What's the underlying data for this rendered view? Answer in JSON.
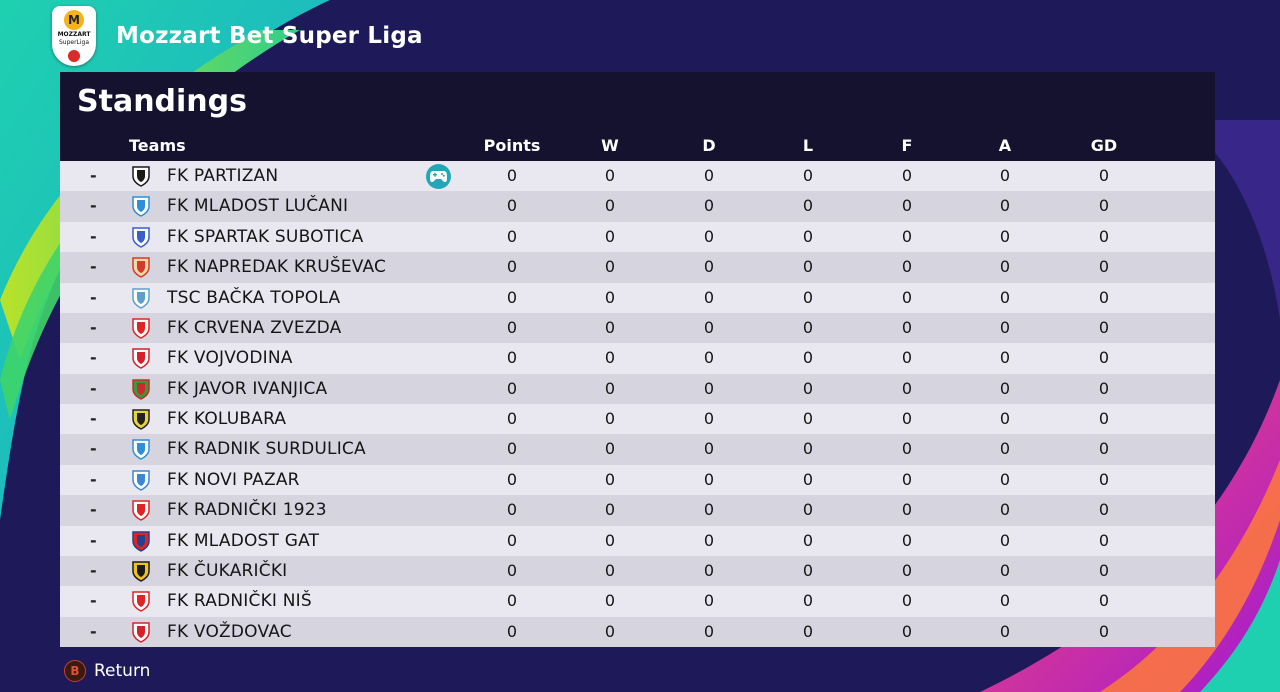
{
  "header": {
    "league_title": "Mozzart Bet Super Liga",
    "logo_text_top": "MOZZART",
    "logo_text_bottom": "SuperLiga",
    "logo_mark": "M"
  },
  "panel": {
    "title": "Standings",
    "columns": {
      "teams": "Teams",
      "points": "Points",
      "w": "W",
      "d": "D",
      "l": "L",
      "f": "F",
      "a": "A",
      "gd": "GD"
    }
  },
  "rows": [
    {
      "pos": "-",
      "name": "FK PARTIZAN",
      "points": "0",
      "w": "0",
      "d": "0",
      "l": "0",
      "f": "0",
      "a": "0",
      "gd": "0",
      "crest": "#1a1a1a",
      "crest2": "#ffffff",
      "controlled": true
    },
    {
      "pos": "-",
      "name": "FK MLADOST LUČANI",
      "points": "0",
      "w": "0",
      "d": "0",
      "l": "0",
      "f": "0",
      "a": "0",
      "gd": "0",
      "crest": "#2f8fd6",
      "crest2": "#ffffff"
    },
    {
      "pos": "-",
      "name": "FK SPARTAK SUBOTICA",
      "points": "0",
      "w": "0",
      "d": "0",
      "l": "0",
      "f": "0",
      "a": "0",
      "gd": "0",
      "crest": "#3a5fc8",
      "crest2": "#ffffff"
    },
    {
      "pos": "-",
      "name": "FK NAPREDAK KRUŠEVAC",
      "points": "0",
      "w": "0",
      "d": "0",
      "l": "0",
      "f": "0",
      "a": "0",
      "gd": "0",
      "crest": "#d23a2a",
      "crest2": "#f2d9a8"
    },
    {
      "pos": "-",
      "name": "TSC BAČKA TOPOLA",
      "points": "0",
      "w": "0",
      "d": "0",
      "l": "0",
      "f": "0",
      "a": "0",
      "gd": "0",
      "crest": "#5aa0c8",
      "crest2": "#ffffff"
    },
    {
      "pos": "-",
      "name": "FK CRVENA ZVEZDA",
      "points": "0",
      "w": "0",
      "d": "0",
      "l": "0",
      "f": "0",
      "a": "0",
      "gd": "0",
      "crest": "#e02424",
      "crest2": "#ffffff"
    },
    {
      "pos": "-",
      "name": "FK VOJVODINA",
      "points": "0",
      "w": "0",
      "d": "0",
      "l": "0",
      "f": "0",
      "a": "0",
      "gd": "0",
      "crest": "#d4202a",
      "crest2": "#ffffff"
    },
    {
      "pos": "-",
      "name": "FK JAVOR IVANJICA",
      "points": "0",
      "w": "0",
      "d": "0",
      "l": "0",
      "f": "0",
      "a": "0",
      "gd": "0",
      "crest": "#cc2b2b",
      "crest2": "#3a9a3a"
    },
    {
      "pos": "-",
      "name": "FK KOLUBARA",
      "points": "0",
      "w": "0",
      "d": "0",
      "l": "0",
      "f": "0",
      "a": "0",
      "gd": "0",
      "crest": "#222222",
      "crest2": "#e7d43a"
    },
    {
      "pos": "-",
      "name": "FK RADNIK SURDULICA",
      "points": "0",
      "w": "0",
      "d": "0",
      "l": "0",
      "f": "0",
      "a": "0",
      "gd": "0",
      "crest": "#2f8fd6",
      "crest2": "#ffffff"
    },
    {
      "pos": "-",
      "name": "FK NOVI PAZAR",
      "points": "0",
      "w": "0",
      "d": "0",
      "l": "0",
      "f": "0",
      "a": "0",
      "gd": "0",
      "crest": "#3b86d6",
      "crest2": "#ffffff"
    },
    {
      "pos": "-",
      "name": "FK RADNIČKI 1923",
      "points": "0",
      "w": "0",
      "d": "0",
      "l": "0",
      "f": "0",
      "a": "0",
      "gd": "0",
      "crest": "#e02424",
      "crest2": "#ffffff"
    },
    {
      "pos": "-",
      "name": "FK MLADOST GAT",
      "points": "0",
      "w": "0",
      "d": "0",
      "l": "0",
      "f": "0",
      "a": "0",
      "gd": "0",
      "crest": "#24418e",
      "crest2": "#e02424"
    },
    {
      "pos": "-",
      "name": "FK ČUKARIČKI",
      "points": "0",
      "w": "0",
      "d": "0",
      "l": "0",
      "f": "0",
      "a": "0",
      "gd": "0",
      "crest": "#1a1a1a",
      "crest2": "#f2c21a"
    },
    {
      "pos": "-",
      "name": "FK RADNIČKI NIŠ",
      "points": "0",
      "w": "0",
      "d": "0",
      "l": "0",
      "f": "0",
      "a": "0",
      "gd": "0",
      "crest": "#e02424",
      "crest2": "#ffffff"
    },
    {
      "pos": "-",
      "name": "FK VOŽDOVAC",
      "points": "0",
      "w": "0",
      "d": "0",
      "l": "0",
      "f": "0",
      "a": "0",
      "gd": "0",
      "crest": "#d8202a",
      "crest2": "#ffffff"
    }
  ],
  "footer": {
    "button_glyph": "B",
    "return_label": "Return"
  },
  "colors": {
    "panel_head": "#14122e",
    "row_odd": "#e9e8f0",
    "row_even": "#d5d4df",
    "controller_badge": "#23a7b8",
    "background": "#1e1a5a"
  }
}
